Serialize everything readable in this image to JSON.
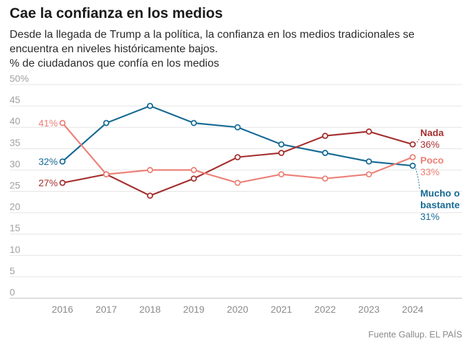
{
  "title": "Cae la confianza en los medios",
  "subtitle": "Desde la llegada de Trump a la política, la confianza en los medios tradicionales se encuentra en niveles históricamente bajos.",
  "unit_label": "% de ciudadanos que confía en los medios",
  "source": "Fuente Gallup. EL PAÍS",
  "chart_data": {
    "type": "line",
    "x": [
      "2016",
      "2017",
      "2018",
      "2019",
      "2020",
      "2021",
      "2022",
      "2023",
      "2024"
    ],
    "ylim": [
      0,
      50
    ],
    "y_ticks": [
      "0",
      "5",
      "10",
      "15",
      "20",
      "25",
      "30",
      "35",
      "40",
      "45",
      "50%"
    ],
    "grid": true,
    "series": [
      {
        "name": "Mucho o bastante",
        "color": "#166a94",
        "values": [
          32,
          41,
          45,
          41,
          40,
          36,
          34,
          32,
          31
        ],
        "start_label": "32%",
        "end_label": "31%"
      },
      {
        "name": "Nada",
        "color": "#a5302f",
        "values": [
          27,
          29,
          24,
          28,
          33,
          34,
          38,
          39,
          36
        ],
        "start_label": "27%",
        "end_label": "36%"
      },
      {
        "name": "Poco",
        "color": "#ec8077",
        "values": [
          41,
          29,
          30,
          30,
          27,
          29,
          28,
          29,
          33
        ],
        "start_label": "41%",
        "end_label": "33%"
      }
    ]
  }
}
